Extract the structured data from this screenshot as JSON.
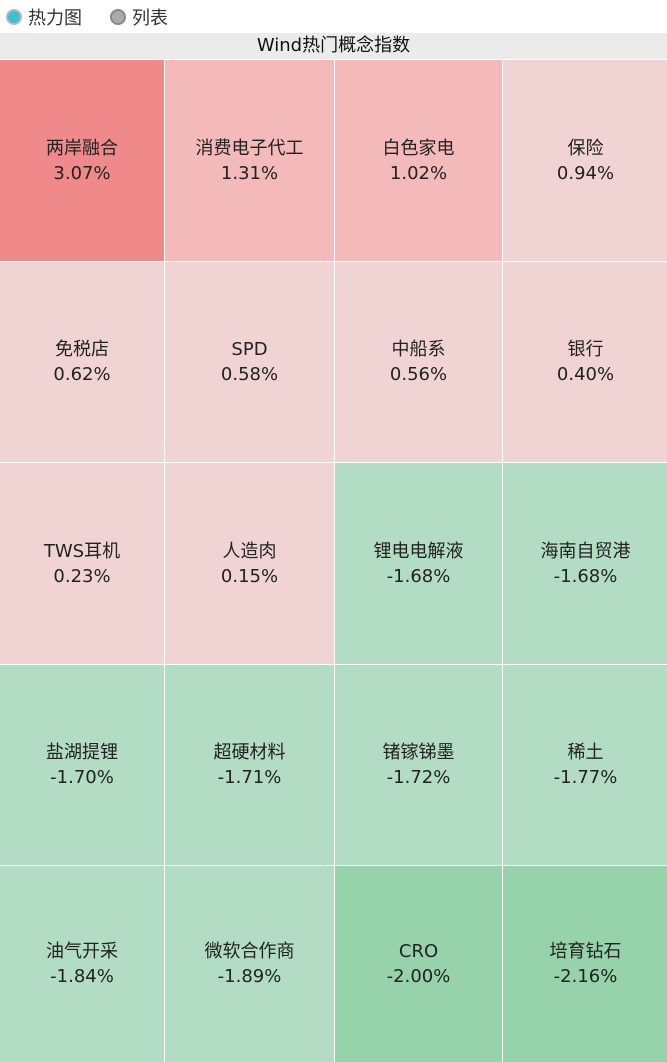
{
  "view_toggle": {
    "options": [
      {
        "label": "热力图",
        "selected": true
      },
      {
        "label": "列表",
        "selected": false
      }
    ]
  },
  "title": "Wind热门概念指数",
  "colors": {
    "strong_up": "#f08a8a",
    "up": "#f4b9b9",
    "slight_up": "#f0d4d4",
    "down": "#b2dcc3",
    "strong_down": "#96d2aa"
  },
  "cells": [
    {
      "name": "两岸融合",
      "change": "3.07%",
      "level": "strong_up"
    },
    {
      "name": "消费电子代工",
      "change": "1.31%",
      "level": "up"
    },
    {
      "name": "白色家电",
      "change": "1.02%",
      "level": "up"
    },
    {
      "name": "保险",
      "change": "0.94%",
      "level": "slight_up"
    },
    {
      "name": "免税店",
      "change": "0.62%",
      "level": "slight_up"
    },
    {
      "name": "SPD",
      "change": "0.58%",
      "level": "slight_up"
    },
    {
      "name": "中船系",
      "change": "0.56%",
      "level": "slight_up"
    },
    {
      "name": "银行",
      "change": "0.40%",
      "level": "slight_up"
    },
    {
      "name": "TWS耳机",
      "change": "0.23%",
      "level": "slight_up"
    },
    {
      "name": "人造肉",
      "change": "0.15%",
      "level": "slight_up"
    },
    {
      "name": "锂电电解液",
      "change": "-1.68%",
      "level": "down"
    },
    {
      "name": "海南自贸港",
      "change": "-1.68%",
      "level": "down"
    },
    {
      "name": "盐湖提锂",
      "change": "-1.70%",
      "level": "down"
    },
    {
      "name": "超硬材料",
      "change": "-1.71%",
      "level": "down"
    },
    {
      "name": "锗镓锑墨",
      "change": "-1.72%",
      "level": "down"
    },
    {
      "name": "稀土",
      "change": "-1.77%",
      "level": "down"
    },
    {
      "name": "油气开采",
      "change": "-1.84%",
      "level": "down"
    },
    {
      "name": "微软合作商",
      "change": "-1.89%",
      "level": "down"
    },
    {
      "name": "CRO",
      "change": "-2.00%",
      "level": "strong_down"
    },
    {
      "name": "培育钻石",
      "change": "-2.16%",
      "level": "strong_down"
    }
  ]
}
